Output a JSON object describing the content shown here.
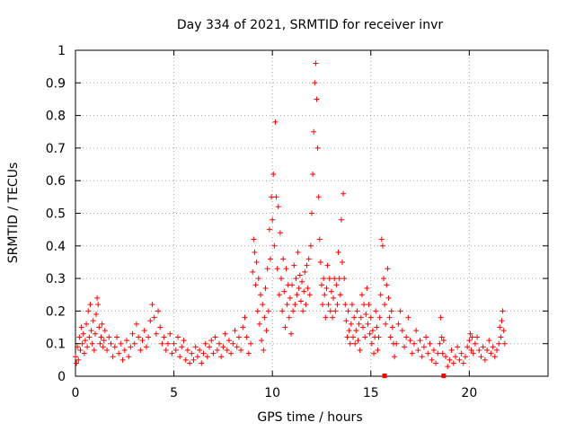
{
  "chart_data": {
    "type": "scatter",
    "title": "Day 334 of 2021, SRMTID for receiver invr",
    "xlabel": "GPS time / hours",
    "ylabel": "SRMTID / TECUs",
    "xlim": [
      0,
      24
    ],
    "ylim": [
      0,
      1
    ],
    "x_ticks": [
      0,
      5,
      10,
      15,
      20
    ],
    "x_tick_labels": [
      "0",
      "5",
      "10",
      "15",
      "20"
    ],
    "y_ticks": [
      0,
      0.1,
      0.2,
      0.3,
      0.4,
      0.5,
      0.6,
      0.7,
      0.8,
      0.9,
      1
    ],
    "y_tick_labels": [
      "0",
      "0.1",
      "0.2",
      "0.3",
      "0.4",
      "0.5",
      "0.6",
      "0.7",
      "0.8",
      "0.9",
      "1"
    ],
    "grid": true,
    "marker": "+",
    "marker_color": "#ff0000",
    "series": [
      {
        "name": "SRMTID",
        "points": [
          [
            0.0,
            0.06
          ],
          [
            0.05,
            0.04
          ],
          [
            0.1,
            0.09
          ],
          [
            0.15,
            0.05
          ],
          [
            0.2,
            0.12
          ],
          [
            0.25,
            0.08
          ],
          [
            0.3,
            0.15
          ],
          [
            0.35,
            0.1
          ],
          [
            0.4,
            0.13
          ],
          [
            0.45,
            0.07
          ],
          [
            0.5,
            0.11
          ],
          [
            0.55,
            0.16
          ],
          [
            0.6,
            0.09
          ],
          [
            0.65,
            0.2
          ],
          [
            0.7,
            0.12
          ],
          [
            0.75,
            0.22
          ],
          [
            0.8,
            0.14
          ],
          [
            0.85,
            0.1
          ],
          [
            0.9,
            0.17
          ],
          [
            0.95,
            0.08
          ],
          [
            1.0,
            0.13
          ],
          [
            1.05,
            0.19
          ],
          [
            1.1,
            0.24
          ],
          [
            1.15,
            0.22
          ],
          [
            1.2,
            0.15
          ],
          [
            1.25,
            0.1
          ],
          [
            1.3,
            0.12
          ],
          [
            1.35,
            0.16
          ],
          [
            1.4,
            0.09
          ],
          [
            1.45,
            0.11
          ],
          [
            1.5,
            0.14
          ],
          [
            1.6,
            0.08
          ],
          [
            1.7,
            0.12
          ],
          [
            1.8,
            0.1
          ],
          [
            1.9,
            0.06
          ],
          [
            2.0,
            0.09
          ],
          [
            2.1,
            0.12
          ],
          [
            2.2,
            0.07
          ],
          [
            2.3,
            0.1
          ],
          [
            2.4,
            0.05
          ],
          [
            2.5,
            0.08
          ],
          [
            2.6,
            0.11
          ],
          [
            2.7,
            0.06
          ],
          [
            2.8,
            0.09
          ],
          [
            2.9,
            0.13
          ],
          [
            3.0,
            0.1
          ],
          [
            3.1,
            0.16
          ],
          [
            3.2,
            0.12
          ],
          [
            3.3,
            0.08
          ],
          [
            3.4,
            0.11
          ],
          [
            3.5,
            0.14
          ],
          [
            3.6,
            0.09
          ],
          [
            3.7,
            0.12
          ],
          [
            3.8,
            0.17
          ],
          [
            3.9,
            0.22
          ],
          [
            4.0,
            0.18
          ],
          [
            4.1,
            0.13
          ],
          [
            4.2,
            0.2
          ],
          [
            4.3,
            0.15
          ],
          [
            4.4,
            0.1
          ],
          [
            4.5,
            0.12
          ],
          [
            4.6,
            0.08
          ],
          [
            4.7,
            0.1
          ],
          [
            4.8,
            0.13
          ],
          [
            4.9,
            0.07
          ],
          [
            5.0,
            0.1
          ],
          [
            5.1,
            0.08
          ],
          [
            5.2,
            0.12
          ],
          [
            5.3,
            0.06
          ],
          [
            5.4,
            0.09
          ],
          [
            5.5,
            0.11
          ],
          [
            5.6,
            0.05
          ],
          [
            5.7,
            0.08
          ],
          [
            5.8,
            0.04
          ],
          [
            5.9,
            0.07
          ],
          [
            6.0,
            0.05
          ],
          [
            6.1,
            0.09
          ],
          [
            6.2,
            0.06
          ],
          [
            6.3,
            0.08
          ],
          [
            6.4,
            0.04
          ],
          [
            6.5,
            0.07
          ],
          [
            6.6,
            0.1
          ],
          [
            6.7,
            0.06
          ],
          [
            6.8,
            0.09
          ],
          [
            6.9,
            0.11
          ],
          [
            7.0,
            0.07
          ],
          [
            7.1,
            0.12
          ],
          [
            7.2,
            0.08
          ],
          [
            7.3,
            0.1
          ],
          [
            7.4,
            0.06
          ],
          [
            7.5,
            0.09
          ],
          [
            7.6,
            0.13
          ],
          [
            7.7,
            0.08
          ],
          [
            7.8,
            0.11
          ],
          [
            7.9,
            0.07
          ],
          [
            8.0,
            0.1
          ],
          [
            8.1,
            0.14
          ],
          [
            8.2,
            0.09
          ],
          [
            8.3,
            0.12
          ],
          [
            8.4,
            0.08
          ],
          [
            8.5,
            0.15
          ],
          [
            8.6,
            0.18
          ],
          [
            8.7,
            0.12
          ],
          [
            8.8,
            0.07
          ],
          [
            8.9,
            0.1
          ],
          [
            9.0,
            0.32
          ],
          [
            9.05,
            0.42
          ],
          [
            9.1,
            0.38
          ],
          [
            9.15,
            0.28
          ],
          [
            9.2,
            0.35
          ],
          [
            9.25,
            0.2
          ],
          [
            9.3,
            0.3
          ],
          [
            9.35,
            0.16
          ],
          [
            9.4,
            0.25
          ],
          [
            9.45,
            0.11
          ],
          [
            9.5,
            0.22
          ],
          [
            9.55,
            0.08
          ],
          [
            9.6,
            0.18
          ],
          [
            9.65,
            0.27
          ],
          [
            9.7,
            0.14
          ],
          [
            9.75,
            0.33
          ],
          [
            9.8,
            0.2
          ],
          [
            9.85,
            0.45
          ],
          [
            9.9,
            0.36
          ],
          [
            9.95,
            0.55
          ],
          [
            10.0,
            0.48
          ],
          [
            10.05,
            0.62
          ],
          [
            10.1,
            0.4
          ],
          [
            10.15,
            0.78
          ],
          [
            10.2,
            0.55
          ],
          [
            10.25,
            0.33
          ],
          [
            10.3,
            0.52
          ],
          [
            10.35,
            0.25
          ],
          [
            10.4,
            0.44
          ],
          [
            10.45,
            0.3
          ],
          [
            10.5,
            0.2
          ],
          [
            10.55,
            0.36
          ],
          [
            10.6,
            0.26
          ],
          [
            10.65,
            0.15
          ],
          [
            10.7,
            0.33
          ],
          [
            10.75,
            0.22
          ],
          [
            10.8,
            0.28
          ],
          [
            10.85,
            0.18
          ],
          [
            10.9,
            0.24
          ],
          [
            10.95,
            0.13
          ],
          [
            11.0,
            0.28
          ],
          [
            11.05,
            0.2
          ],
          [
            11.1,
            0.34
          ],
          [
            11.15,
            0.22
          ],
          [
            11.2,
            0.3
          ],
          [
            11.25,
            0.25
          ],
          [
            11.3,
            0.38
          ],
          [
            11.35,
            0.27
          ],
          [
            11.4,
            0.31
          ],
          [
            11.45,
            0.23
          ],
          [
            11.5,
            0.29
          ],
          [
            11.55,
            0.2
          ],
          [
            11.6,
            0.26
          ],
          [
            11.65,
            0.32
          ],
          [
            11.7,
            0.22
          ],
          [
            11.75,
            0.34
          ],
          [
            11.8,
            0.27
          ],
          [
            11.85,
            0.36
          ],
          [
            11.9,
            0.25
          ],
          [
            11.95,
            0.4
          ],
          [
            12.0,
            0.5
          ],
          [
            12.05,
            0.62
          ],
          [
            12.1,
            0.75
          ],
          [
            12.15,
            0.9
          ],
          [
            12.2,
            0.96
          ],
          [
            12.25,
            0.85
          ],
          [
            12.3,
            0.7
          ],
          [
            12.35,
            0.55
          ],
          [
            12.4,
            0.42
          ],
          [
            12.45,
            0.35
          ],
          [
            12.5,
            0.28
          ],
          [
            12.55,
            0.22
          ],
          [
            12.6,
            0.3
          ],
          [
            12.65,
            0.25
          ],
          [
            12.7,
            0.18
          ],
          [
            12.75,
            0.27
          ],
          [
            12.8,
            0.34
          ],
          [
            12.85,
            0.22
          ],
          [
            12.9,
            0.3
          ],
          [
            12.95,
            0.2
          ],
          [
            13.0,
            0.26
          ],
          [
            13.05,
            0.18
          ],
          [
            13.1,
            0.24
          ],
          [
            13.15,
            0.3
          ],
          [
            13.2,
            0.2
          ],
          [
            13.25,
            0.28
          ],
          [
            13.3,
            0.22
          ],
          [
            13.35,
            0.38
          ],
          [
            13.4,
            0.3
          ],
          [
            13.45,
            0.25
          ],
          [
            13.5,
            0.48
          ],
          [
            13.55,
            0.35
          ],
          [
            13.6,
            0.56
          ],
          [
            13.65,
            0.3
          ],
          [
            13.7,
            0.22
          ],
          [
            13.75,
            0.17
          ],
          [
            13.8,
            0.12
          ],
          [
            13.85,
            0.2
          ],
          [
            13.9,
            0.14
          ],
          [
            13.95,
            0.1
          ],
          [
            14.0,
            0.16
          ],
          [
            14.05,
            0.22
          ],
          [
            14.1,
            0.12
          ],
          [
            14.15,
            0.18
          ],
          [
            14.2,
            0.1
          ],
          [
            14.25,
            0.14
          ],
          [
            14.3,
            0.2
          ],
          [
            14.35,
            0.11
          ],
          [
            14.4,
            0.16
          ],
          [
            14.45,
            0.08
          ],
          [
            14.5,
            0.18
          ],
          [
            14.55,
            0.25
          ],
          [
            14.6,
            0.15
          ],
          [
            14.65,
            0.22
          ],
          [
            14.7,
            0.12
          ],
          [
            14.75,
            0.19
          ],
          [
            14.8,
            0.27
          ],
          [
            14.85,
            0.16
          ],
          [
            14.9,
            0.22
          ],
          [
            14.95,
            0.13
          ],
          [
            15.0,
            0.18
          ],
          [
            15.05,
            0.1
          ],
          [
            15.1,
            0.14
          ],
          [
            15.15,
            0.07
          ],
          [
            15.2,
            0.12
          ],
          [
            15.25,
            0.2
          ],
          [
            15.3,
            0.15
          ],
          [
            15.35,
            0.08
          ],
          [
            15.4,
            0.12
          ],
          [
            15.45,
            0.18
          ],
          [
            15.5,
            0.25
          ],
          [
            15.55,
            0.42
          ],
          [
            15.6,
            0.4
          ],
          [
            15.65,
            0.3
          ],
          [
            15.7,
            0.22
          ],
          [
            15.75,
            0.16
          ],
          [
            15.8,
            0.28
          ],
          [
            15.85,
            0.33
          ],
          [
            15.9,
            0.24
          ],
          [
            15.95,
            0.18
          ],
          [
            16.0,
            0.12
          ],
          [
            16.05,
            0.2
          ],
          [
            16.1,
            0.15
          ],
          [
            16.15,
            0.1
          ],
          [
            16.2,
            0.06
          ],
          [
            16.3,
            0.1
          ],
          [
            16.4,
            0.16
          ],
          [
            16.5,
            0.2
          ],
          [
            16.6,
            0.14
          ],
          [
            16.7,
            0.09
          ],
          [
            16.8,
            0.12
          ],
          [
            16.9,
            0.18
          ],
          [
            17.0,
            0.11
          ],
          [
            17.1,
            0.07
          ],
          [
            17.2,
            0.1
          ],
          [
            17.3,
            0.14
          ],
          [
            17.4,
            0.08
          ],
          [
            17.5,
            0.11
          ],
          [
            17.6,
            0.06
          ],
          [
            17.7,
            0.09
          ],
          [
            17.8,
            0.12
          ],
          [
            17.9,
            0.07
          ],
          [
            18.0,
            0.1
          ],
          [
            18.1,
            0.05
          ],
          [
            18.2,
            0.08
          ],
          [
            18.3,
            0.04
          ],
          [
            18.4,
            0.07
          ],
          [
            18.5,
            0.1
          ],
          [
            18.55,
            0.18
          ],
          [
            18.6,
            0.12
          ],
          [
            18.65,
            0.07
          ],
          [
            18.7,
            0.11
          ],
          [
            18.8,
            0.06
          ],
          [
            18.9,
            0.03
          ],
          [
            19.0,
            0.05
          ],
          [
            19.1,
            0.08
          ],
          [
            19.2,
            0.04
          ],
          [
            19.3,
            0.06
          ],
          [
            19.4,
            0.09
          ],
          [
            19.5,
            0.05
          ],
          [
            19.6,
            0.07
          ],
          [
            19.7,
            0.04
          ],
          [
            19.8,
            0.06
          ],
          [
            19.9,
            0.09
          ],
          [
            20.0,
            0.11
          ],
          [
            20.05,
            0.13
          ],
          [
            20.1,
            0.08
          ],
          [
            20.15,
            0.12
          ],
          [
            20.2,
            0.07
          ],
          [
            20.3,
            0.1
          ],
          [
            20.4,
            0.12
          ],
          [
            20.5,
            0.08
          ],
          [
            20.6,
            0.06
          ],
          [
            20.7,
            0.09
          ],
          [
            20.8,
            0.05
          ],
          [
            20.9,
            0.08
          ],
          [
            21.0,
            0.11
          ],
          [
            21.1,
            0.07
          ],
          [
            21.2,
            0.09
          ],
          [
            21.3,
            0.06
          ],
          [
            21.4,
            0.08
          ],
          [
            21.5,
            0.1
          ],
          [
            21.55,
            0.15
          ],
          [
            21.6,
            0.12
          ],
          [
            21.65,
            0.17
          ],
          [
            21.7,
            0.2
          ],
          [
            21.75,
            0.14
          ],
          [
            21.8,
            0.1
          ]
        ]
      }
    ],
    "extra_markers": [
      [
        15.7,
        0.0
      ],
      [
        18.7,
        0.0
      ]
    ]
  }
}
